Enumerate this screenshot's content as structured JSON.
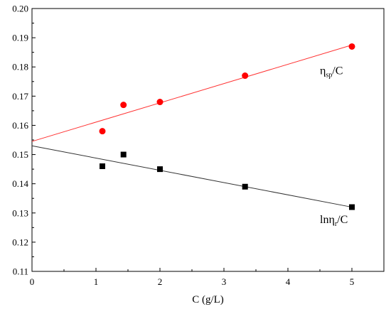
{
  "chart_data": {
    "type": "scatter",
    "title": "",
    "xlabel": "C (g/L)",
    "ylabel": "",
    "xlim": [
      0,
      5.5
    ],
    "ylim": [
      0.11,
      0.2
    ],
    "x_ticks": [
      0,
      1,
      2,
      3,
      4,
      5
    ],
    "y_ticks": [
      0.11,
      0.12,
      0.13,
      0.14,
      0.15,
      0.16,
      0.17,
      0.18,
      0.19,
      0.2
    ],
    "x_tick_labels": [
      "0",
      "1",
      "2",
      "3",
      "4",
      "5"
    ],
    "y_tick_labels": [
      "0.11",
      "0.12",
      "0.13",
      "0.14",
      "0.15",
      "0.16",
      "0.17",
      "0.18",
      "0.19",
      "0.20"
    ],
    "grid": false,
    "series": [
      {
        "marker": "circle",
        "color": "#ff0000",
        "x": [
          1.1,
          1.43,
          2.0,
          3.33,
          5.0
        ],
        "y": [
          0.158,
          0.167,
          0.168,
          0.177,
          0.187
        ],
        "fit_line": {
          "x": [
            0,
            5.0
          ],
          "y": [
            0.1545,
            0.1875
          ],
          "color": "#ff3333"
        }
      },
      {
        "marker": "square",
        "color": "#000000",
        "x": [
          1.1,
          1.43,
          2.0,
          3.33,
          5.0
        ],
        "y": [
          0.146,
          0.15,
          0.145,
          0.139,
          0.132
        ],
        "fit_line": {
          "x": [
            0,
            5.0
          ],
          "y": [
            0.153,
            0.132
          ],
          "color": "#333333"
        }
      }
    ],
    "annotations": [
      {
        "base": "η",
        "sub": "sp",
        "rest": "/C",
        "x": 4.5,
        "y": 0.1775
      },
      {
        "base": "lnη",
        "sub": "r",
        "rest": "/C",
        "x": 4.5,
        "y": 0.1265
      }
    ]
  }
}
